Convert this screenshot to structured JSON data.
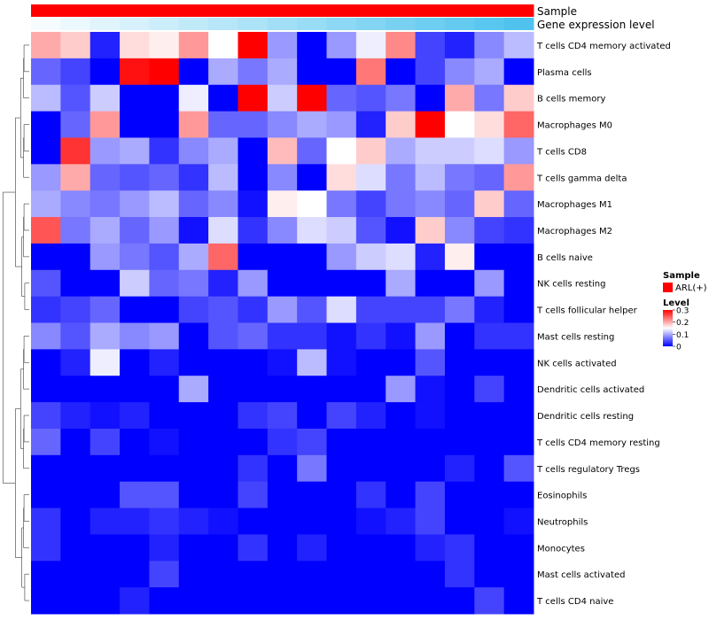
{
  "chart_data": {
    "type": "heatmap",
    "annotations": [
      {
        "name": "Sample",
        "kind": "categorical",
        "value": "ARL(+)",
        "color": "#ff0000"
      },
      {
        "name": "Gene expression level",
        "kind": "gradient",
        "color_low": "#f5fbfe",
        "color_high": "#4fc3ee"
      }
    ],
    "rows": [
      "T cells CD4 memory activated",
      "Plasma cells",
      "B cells memory",
      "Macrophages M0",
      "T cells CD8",
      "T cells gamma delta",
      "Macrophages M1",
      "Macrophages M2",
      "B cells naive",
      "NK cells resting",
      "T cells follicular helper",
      "Mast cells resting",
      "NK cells activated",
      "Dendritic cells activated",
      "Dendritic cells resting",
      "T cells CD4 memory resting",
      "T cells regulatory  Tregs",
      "Eosinophils",
      "Neutrophils",
      "Monocytes",
      "Mast cells activated",
      "T cells CD4 naive"
    ],
    "values": [
      [
        0.2,
        0.18,
        0.02,
        0.17,
        0.16,
        0.21,
        0.15,
        0.3,
        0.09,
        0.0,
        0.09,
        0.14,
        0.22,
        0.04,
        0.02,
        0.08,
        0.11
      ],
      [
        0.06,
        0.04,
        0.0,
        0.29,
        0.3,
        0.0,
        0.1,
        0.07,
        0.1,
        0.0,
        0.0,
        0.23,
        0.0,
        0.04,
        0.08,
        0.1,
        0.0
      ],
      [
        0.11,
        0.05,
        0.12,
        0.0,
        0.0,
        0.14,
        0.0,
        0.3,
        0.12,
        0.3,
        0.06,
        0.05,
        0.07,
        0.0,
        0.2,
        0.07,
        0.18
      ],
      [
        0.0,
        0.06,
        0.21,
        0.0,
        0.0,
        0.21,
        0.06,
        0.06,
        0.08,
        0.1,
        0.09,
        0.02,
        0.18,
        0.3,
        0.15,
        0.17,
        0.24
      ],
      [
        0.0,
        0.27,
        0.09,
        0.1,
        0.03,
        0.08,
        0.1,
        0.0,
        0.19,
        0.06,
        0.15,
        0.18,
        0.1,
        0.12,
        0.12,
        0.13,
        0.09
      ],
      [
        0.09,
        0.2,
        0.06,
        0.05,
        0.06,
        0.03,
        0.11,
        0.0,
        0.08,
        0.0,
        0.17,
        0.13,
        0.07,
        0.11,
        0.07,
        0.06,
        0.21
      ],
      [
        0.1,
        0.08,
        0.07,
        0.09,
        0.11,
        0.06,
        0.08,
        0.01,
        0.16,
        0.15,
        0.07,
        0.04,
        0.07,
        0.08,
        0.06,
        0.18,
        0.06
      ],
      [
        0.25,
        0.07,
        0.1,
        0.06,
        0.09,
        0.01,
        0.13,
        0.03,
        0.08,
        0.13,
        0.12,
        0.05,
        0.01,
        0.18,
        0.08,
        0.04,
        0.03
      ],
      [
        0.0,
        0.0,
        0.09,
        0.07,
        0.05,
        0.1,
        0.24,
        0.0,
        0.0,
        0.0,
        0.09,
        0.12,
        0.13,
        0.02,
        0.16,
        0.0,
        0.0
      ],
      [
        0.05,
        0.0,
        0.0,
        0.12,
        0.06,
        0.07,
        0.02,
        0.09,
        0.0,
        0.0,
        0.0,
        0.0,
        0.1,
        0.0,
        0.0,
        0.09,
        0.0
      ],
      [
        0.03,
        0.04,
        0.06,
        0.0,
        0.0,
        0.04,
        0.05,
        0.03,
        0.09,
        0.05,
        0.13,
        0.04,
        0.04,
        0.04,
        0.07,
        0.02,
        0.0
      ],
      [
        0.08,
        0.05,
        0.1,
        0.08,
        0.09,
        0.0,
        0.05,
        0.06,
        0.03,
        0.03,
        0.01,
        0.03,
        0.01,
        0.09,
        0.0,
        0.03,
        0.03
      ],
      [
        0.0,
        0.02,
        0.14,
        0.0,
        0.02,
        0.0,
        0.0,
        0.0,
        0.01,
        0.11,
        0.01,
        0.0,
        0.0,
        0.05,
        0.0,
        0.0,
        0.0
      ],
      [
        0.0,
        0.0,
        0.0,
        0.0,
        0.0,
        0.1,
        0.0,
        0.0,
        0.0,
        0.0,
        0.0,
        0.0,
        0.09,
        0.01,
        0.0,
        0.04,
        0.0
      ],
      [
        0.04,
        0.02,
        0.01,
        0.02,
        0.0,
        0.0,
        0.0,
        0.03,
        0.04,
        0.0,
        0.04,
        0.02,
        0.0,
        0.01,
        0.0,
        0.0,
        0.0
      ],
      [
        0.06,
        0.0,
        0.04,
        0.0,
        0.01,
        0.0,
        0.0,
        0.0,
        0.03,
        0.04,
        0.0,
        0.0,
        0.0,
        0.0,
        0.0,
        0.0,
        0.0
      ],
      [
        0.0,
        0.0,
        0.0,
        0.0,
        0.0,
        0.0,
        0.0,
        0.03,
        0.0,
        0.07,
        0.0,
        0.0,
        0.0,
        0.0,
        0.02,
        0.0,
        0.05
      ],
      [
        0.0,
        0.0,
        0.0,
        0.05,
        0.05,
        0.0,
        0.0,
        0.04,
        0.0,
        0.0,
        0.0,
        0.03,
        0.0,
        0.04,
        0.0,
        0.0,
        0.0
      ],
      [
        0.03,
        0.0,
        0.02,
        0.02,
        0.03,
        0.02,
        0.01,
        0.0,
        0.0,
        0.0,
        0.0,
        0.01,
        0.02,
        0.04,
        0.0,
        0.0,
        0.01
      ],
      [
        0.03,
        0.0,
        0.0,
        0.0,
        0.02,
        0.0,
        0.0,
        0.03,
        0.0,
        0.02,
        0.0,
        0.0,
        0.0,
        0.02,
        0.03,
        0.0,
        0.0
      ],
      [
        0.0,
        0.0,
        0.0,
        0.0,
        0.04,
        0.0,
        0.0,
        0.0,
        0.0,
        0.0,
        0.0,
        0.0,
        0.0,
        0.0,
        0.03,
        0.0,
        0.0
      ],
      [
        0.0,
        0.0,
        0.0,
        0.02,
        0.0,
        0.0,
        0.0,
        0.0,
        0.0,
        0.0,
        0.0,
        0.0,
        0.0,
        0.0,
        0.0,
        0.04,
        0.0
      ]
    ],
    "color_scale": {
      "min": 0,
      "max": 0.3,
      "low": "#0000ff",
      "mid": "#ffffff",
      "high": "#ff0000",
      "mid_value": 0.15
    },
    "legend": {
      "sample_title": "Sample",
      "sample_entry": "ARL(+)",
      "level_title": "Level",
      "ticks": [
        "0.3",
        "0.2",
        "0.1",
        "0"
      ],
      "tick_values": [
        0.3,
        0.2,
        0.1,
        0
      ]
    },
    "row_dendrogram": true
  }
}
